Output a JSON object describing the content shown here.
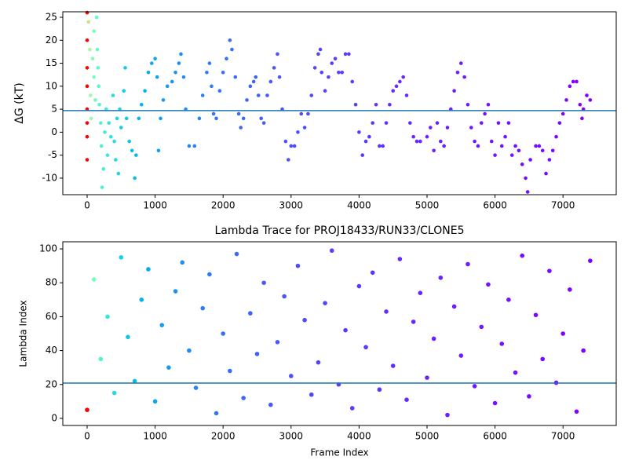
{
  "chart_data": [
    {
      "type": "scatter",
      "ylabel": "ΔG (kT)",
      "colormap": "rainbow_r",
      "color_norm": "log",
      "hline": 4.7,
      "hline_color": "#1f77b4",
      "xlim": [
        -358,
        7783
      ],
      "xticks": [
        0,
        1000,
        2000,
        3000,
        4000,
        5000,
        6000,
        7000
      ],
      "ylim": [
        -13.6,
        26.2
      ],
      "yticks": [
        -10,
        -5,
        0,
        5,
        10,
        15,
        20,
        25
      ],
      "x": [
        0,
        0,
        0,
        0,
        0,
        0,
        0,
        0,
        20,
        40,
        50,
        60,
        80,
        100,
        100,
        120,
        140,
        150,
        160,
        170,
        180,
        200,
        210,
        220,
        240,
        260,
        280,
        300,
        320,
        350,
        380,
        400,
        420,
        440,
        460,
        480,
        500,
        540,
        560,
        580,
        620,
        660,
        700,
        720,
        760,
        800,
        850,
        900,
        950,
        1000,
        1030,
        1050,
        1080,
        1120,
        1180,
        1250,
        1300,
        1350,
        1380,
        1420,
        1450,
        1500,
        1580,
        1650,
        1700,
        1760,
        1800,
        1830,
        1860,
        1900,
        1950,
        2000,
        2050,
        2100,
        2130,
        2180,
        2230,
        2260,
        2300,
        2350,
        2400,
        2450,
        2480,
        2520,
        2560,
        2600,
        2650,
        2700,
        2750,
        2800,
        2830,
        2870,
        2920,
        2960,
        3000,
        3050,
        3100,
        3150,
        3200,
        3250,
        3300,
        3350,
        3400,
        3430,
        3450,
        3500,
        3550,
        3600,
        3650,
        3700,
        3750,
        3800,
        3850,
        3900,
        3950,
        4000,
        4050,
        4100,
        4150,
        4200,
        4250,
        4300,
        4350,
        4400,
        4450,
        4500,
        4550,
        4600,
        4650,
        4700,
        4750,
        4800,
        4850,
        4900,
        5000,
        5050,
        5100,
        5150,
        5200,
        5250,
        5300,
        5350,
        5400,
        5450,
        5500,
        5550,
        5600,
        5650,
        5700,
        5750,
        5800,
        5850,
        5900,
        5950,
        6000,
        6050,
        6100,
        6150,
        6200,
        6250,
        6300,
        6350,
        6400,
        6450,
        6480,
        6520,
        6600,
        6650,
        6700,
        6750,
        6800,
        6850,
        6900,
        6950,
        7000,
        7050,
        7100,
        7150,
        7200,
        7250,
        7280,
        7300,
        7350,
        7400
      ],
      "values": [
        26,
        20,
        14,
        10,
        5,
        2,
        -1,
        -6,
        24,
        18,
        8,
        3,
        16,
        22,
        12,
        7,
        25,
        18,
        14,
        10,
        6,
        2,
        -3,
        -12,
        -8,
        0,
        5,
        -5,
        2,
        -1,
        8,
        -2,
        -6,
        3,
        -9,
        5,
        1,
        9,
        14,
        3,
        -2,
        -4,
        -10,
        -5,
        3,
        6,
        9,
        13,
        15,
        16,
        12,
        -4,
        3,
        7,
        10,
        11,
        13,
        15,
        17,
        12,
        5,
        -3,
        -3,
        3,
        8,
        13,
        15,
        10,
        4,
        3,
        9,
        13,
        16,
        20,
        18,
        12,
        4,
        1,
        3,
        7,
        10,
        11,
        12,
        8,
        3,
        2,
        8,
        11,
        14,
        17,
        12,
        5,
        -2,
        -6,
        -3,
        -3,
        0,
        4,
        1,
        4,
        8,
        14,
        17,
        18,
        13,
        9,
        12,
        15,
        16,
        13,
        13,
        17,
        17,
        11,
        6,
        0,
        -5,
        -2,
        -1,
        2,
        6,
        -3,
        -3,
        2,
        6,
        9,
        10,
        11,
        12,
        8,
        2,
        -1,
        -2,
        -2,
        -1,
        1,
        -4,
        2,
        -2,
        -3,
        1,
        5,
        9,
        13,
        15,
        12,
        6,
        1,
        -2,
        -3,
        2,
        4,
        6,
        -2,
        -5,
        2,
        -3,
        -1,
        2,
        -5,
        -3,
        -4,
        -7,
        -10,
        -13,
        -6,
        -3,
        -3,
        -4,
        -9,
        -6,
        -4,
        -1,
        2,
        4,
        7,
        10,
        11,
        11,
        6,
        3,
        5,
        8,
        7
      ]
    },
    {
      "type": "scatter",
      "title": "Lambda Trace for PROJ18433/RUN33/CLONE5",
      "xlabel": "Frame Index",
      "ylabel": "Lambda Index",
      "colormap": "rainbow_r",
      "color_norm": "log",
      "hline": 20.8,
      "hline_color": "#1f77b4",
      "xlim": [
        -358,
        7783
      ],
      "xticks": [
        0,
        1000,
        2000,
        3000,
        4000,
        5000,
        6000,
        7000
      ],
      "ylim": [
        -4.2,
        104.2
      ],
      "yticks": [
        0,
        20,
        40,
        60,
        80,
        100
      ],
      "x": [
        0,
        100,
        200,
        300,
        400,
        500,
        600,
        700,
        800,
        900,
        1000,
        1100,
        1200,
        1300,
        1400,
        1500,
        1600,
        1700,
        1800,
        1900,
        2000,
        2100,
        2200,
        2300,
        2400,
        2500,
        2600,
        2700,
        2800,
        2900,
        3000,
        3100,
        3200,
        3300,
        3400,
        3500,
        3600,
        3700,
        3800,
        3900,
        4000,
        4100,
        4200,
        4300,
        4400,
        4500,
        4600,
        4700,
        4800,
        4900,
        5000,
        5100,
        5200,
        5300,
        5400,
        5500,
        5600,
        5700,
        5800,
        5900,
        6000,
        6100,
        6200,
        6300,
        6400,
        6500,
        6600,
        6700,
        6800,
        6900,
        7000,
        7100,
        7200,
        7300,
        7400
      ],
      "values": [
        5,
        82,
        35,
        60,
        15,
        95,
        48,
        22,
        70,
        88,
        10,
        55,
        30,
        75,
        92,
        40,
        18,
        65,
        85,
        3,
        50,
        28,
        97,
        12,
        62,
        38,
        80,
        8,
        45,
        72,
        25,
        90,
        58,
        14,
        33,
        68,
        99,
        20,
        52,
        6,
        78,
        42,
        86,
        17,
        63,
        31,
        94,
        11,
        57,
        74,
        24,
        47,
        83,
        2,
        66,
        37,
        91,
        19,
        54,
        79,
        9,
        44,
        70,
        27,
        96,
        13,
        61,
        35,
        87,
        21,
        50,
        76,
        4,
        40,
        93
      ]
    }
  ]
}
